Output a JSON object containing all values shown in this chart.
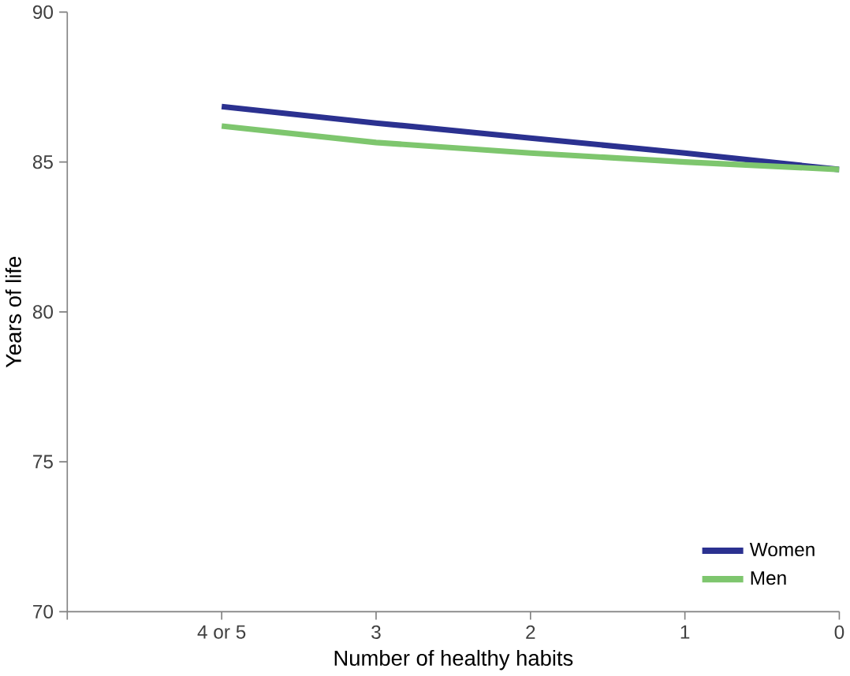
{
  "chart_data": {
    "type": "line",
    "xlabel": "Number of healthy habits",
    "ylabel": "Years of life",
    "categories": [
      null,
      "4 or 5",
      "3",
      "2",
      "1",
      "0"
    ],
    "series": [
      {
        "name": "Women",
        "color": "#2b3190",
        "values": [
          null,
          86.85,
          86.3,
          85.8,
          85.3,
          84.75
        ]
      },
      {
        "name": "Men",
        "color": "#7ec66e",
        "values": [
          null,
          86.2,
          85.65,
          85.3,
          85.0,
          84.75
        ]
      }
    ],
    "ylim": [
      70,
      90
    ],
    "yticks": [
      70,
      75,
      80,
      85,
      90
    ],
    "grid": false,
    "legend": "bottom right",
    "marker": "none",
    "line_style": "solid"
  }
}
